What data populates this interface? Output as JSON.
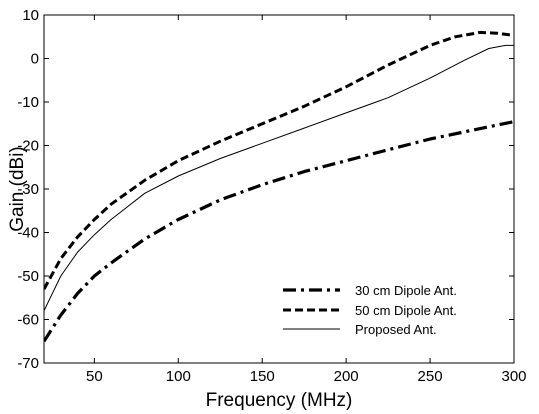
{
  "chart_data": {
    "type": "line",
    "title": "",
    "xlabel": "Frequency (MHz)",
    "ylabel": "Gain (dBi)",
    "xlim": [
      20,
      300
    ],
    "ylim": [
      -70,
      10
    ],
    "xticks": [
      50,
      100,
      150,
      200,
      250,
      300
    ],
    "yticks": [
      -70,
      -60,
      -50,
      -40,
      -30,
      -20,
      -10,
      0,
      10
    ],
    "grid": false,
    "legend_position": "bottom-right",
    "series": [
      {
        "name": "30 cm Dipole Ant.",
        "style": "dash-dot",
        "color": "#000000",
        "x": [
          20,
          30,
          40,
          50,
          60,
          80,
          100,
          125,
          150,
          175,
          200,
          225,
          250,
          275,
          300
        ],
        "y": [
          -65,
          -59,
          -54,
          -50,
          -47,
          -41.5,
          -37,
          -32.5,
          -29,
          -26,
          -23.5,
          -21,
          -18.5,
          -16.5,
          -14.5
        ]
      },
      {
        "name": "50 cm Dipole Ant.",
        "style": "dashed",
        "color": "#000000",
        "x": [
          20,
          30,
          40,
          50,
          60,
          80,
          100,
          125,
          150,
          175,
          200,
          225,
          250,
          265,
          280,
          290,
          300
        ],
        "y": [
          -53,
          -46,
          -41,
          -37,
          -33.5,
          -28,
          -23.5,
          -19,
          -15,
          -11,
          -6.5,
          -1.5,
          3,
          5,
          6,
          5.8,
          5.3
        ]
      },
      {
        "name": "Proposed Ant.",
        "style": "solid",
        "color": "#000000",
        "x": [
          20,
          30,
          40,
          50,
          60,
          80,
          100,
          125,
          150,
          175,
          200,
          225,
          250,
          270,
          285,
          295,
          300
        ],
        "y": [
          -58,
          -50,
          -44.5,
          -40.5,
          -37,
          -31,
          -27,
          -23,
          -19.5,
          -16,
          -12.5,
          -9,
          -4.5,
          -0.5,
          2.3,
          3,
          3
        ]
      }
    ]
  }
}
